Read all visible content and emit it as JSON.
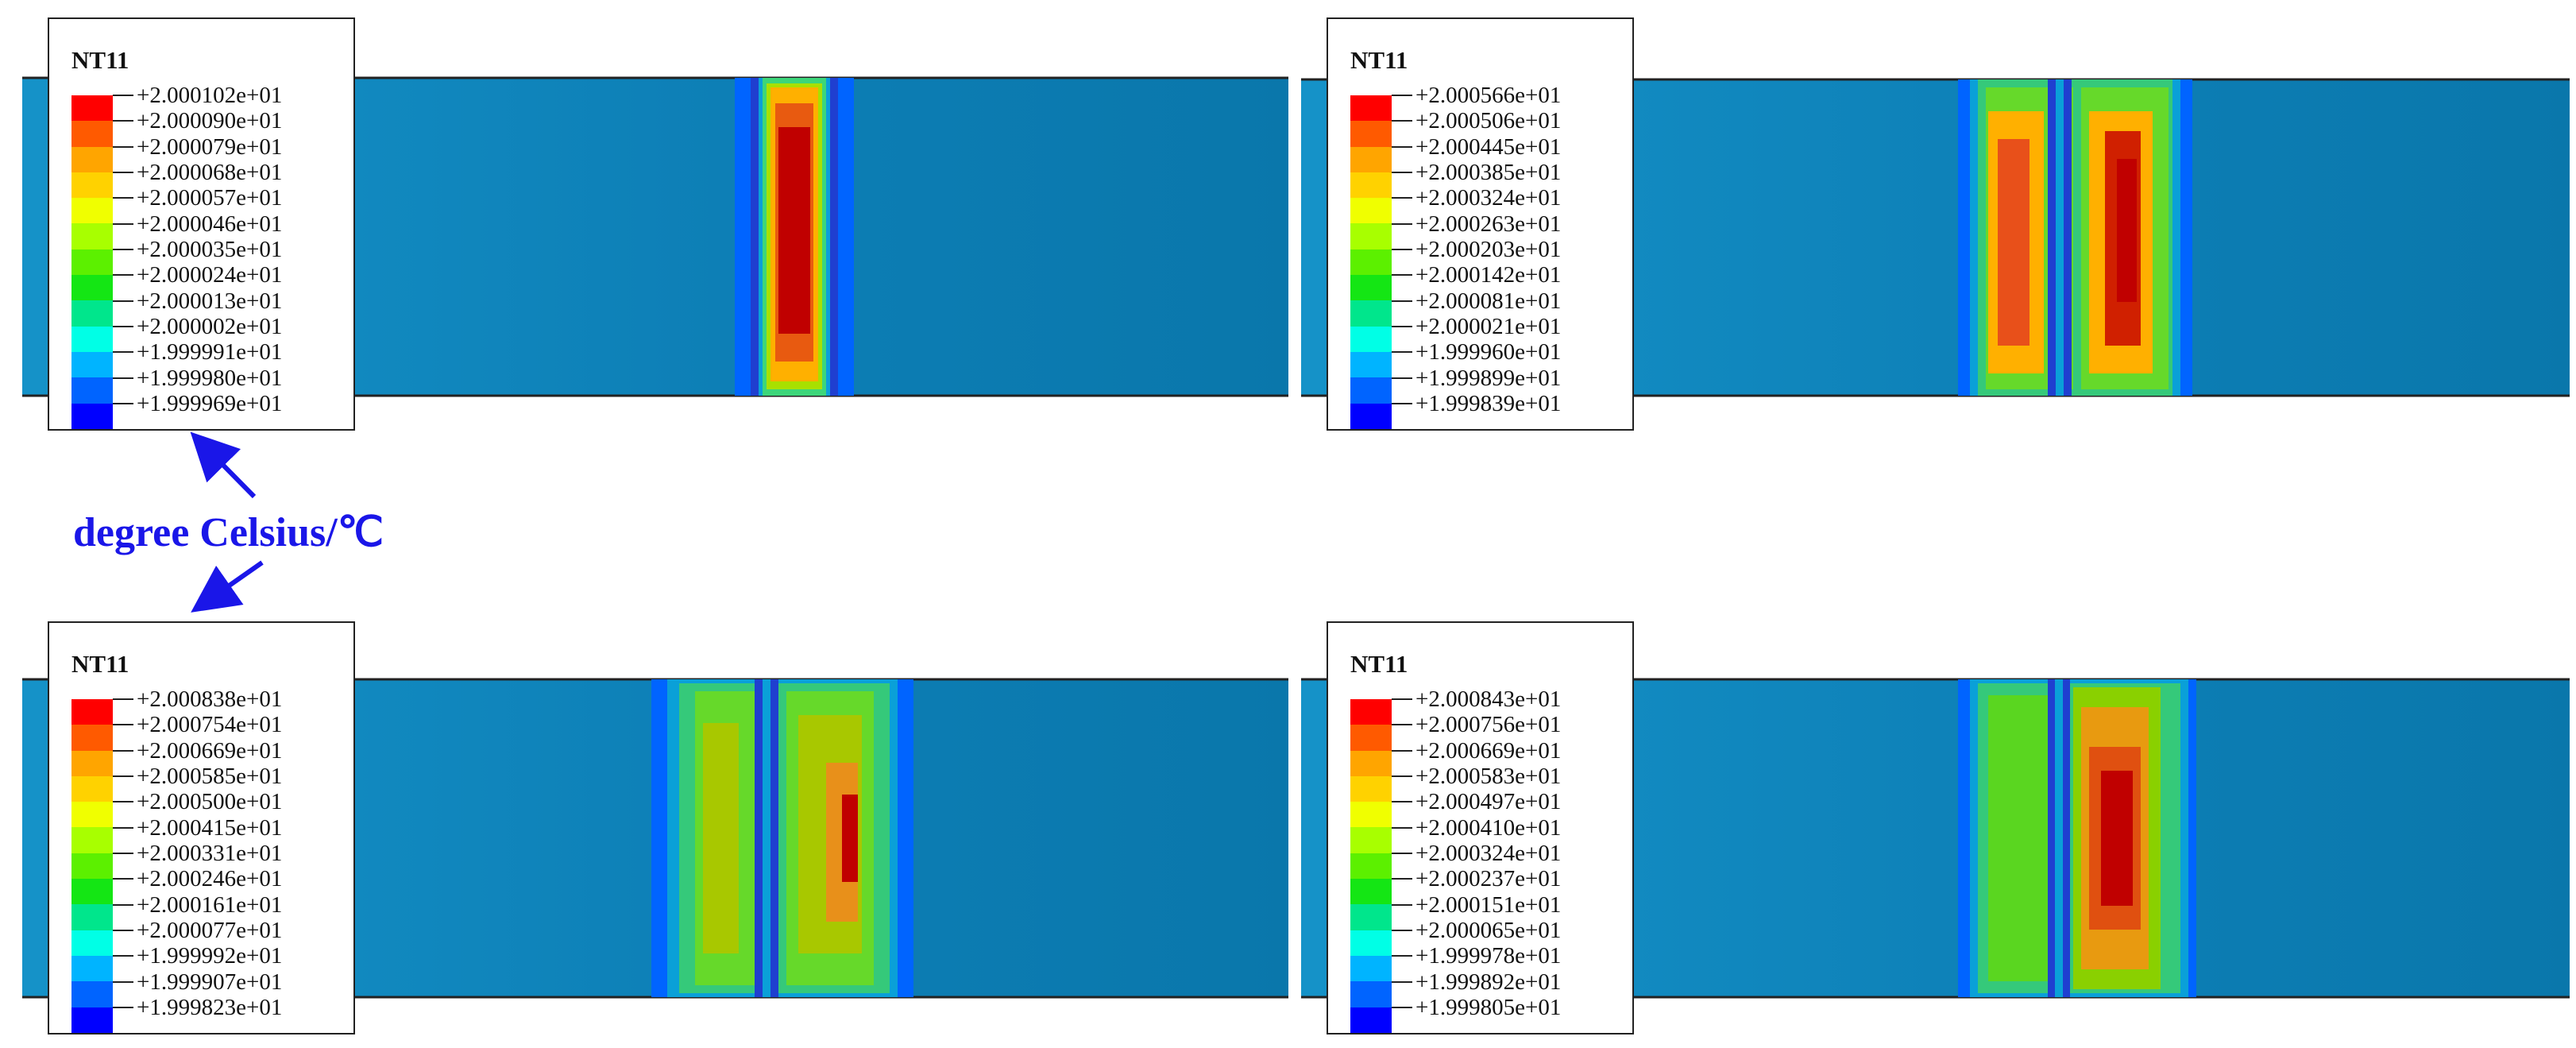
{
  "unit_label": "degree Celsius/℃",
  "colormap": [
    "#ff0000",
    "#ff5a00",
    "#ffa500",
    "#ffd200",
    "#f0ff00",
    "#a8ff00",
    "#5cf000",
    "#14e614",
    "#00e68c",
    "#00ffe6",
    "#00b4ff",
    "#0064ff",
    "#0000ff"
  ],
  "panels": [
    {
      "id": "top-left",
      "legend_title": "NT11",
      "legend_values": [
        "+2.000102e+01",
        "+2.000090e+01",
        "+2.000079e+01",
        "+2.000068e+01",
        "+2.000057e+01",
        "+2.000046e+01",
        "+2.000035e+01",
        "+2.000024e+01",
        "+2.000013e+01",
        "+2.000002e+01",
        "+1.999991e+01",
        "+1.999980e+01",
        "+1.999969e+01"
      ]
    },
    {
      "id": "top-right",
      "legend_title": "NT11",
      "legend_values": [
        "+2.000566e+01",
        "+2.000506e+01",
        "+2.000445e+01",
        "+2.000385e+01",
        "+2.000324e+01",
        "+2.000263e+01",
        "+2.000203e+01",
        "+2.000142e+01",
        "+2.000081e+01",
        "+2.000021e+01",
        "+1.999960e+01",
        "+1.999899e+01",
        "+1.999839e+01"
      ]
    },
    {
      "id": "bottom-left",
      "legend_title": "NT11",
      "legend_values": [
        "+2.000838e+01",
        "+2.000754e+01",
        "+2.000669e+01",
        "+2.000585e+01",
        "+2.000500e+01",
        "+2.000415e+01",
        "+2.000331e+01",
        "+2.000246e+01",
        "+2.000161e+01",
        "+2.000077e+01",
        "+1.999992e+01",
        "+1.999907e+01",
        "+1.999823e+01"
      ]
    },
    {
      "id": "bottom-right",
      "legend_title": "NT11",
      "legend_values": [
        "+2.000843e+01",
        "+2.000756e+01",
        "+2.000669e+01",
        "+2.000583e+01",
        "+2.000497e+01",
        "+2.000410e+01",
        "+2.000324e+01",
        "+2.000237e+01",
        "+2.000151e+01",
        "+2.000065e+01",
        "+1.999978e+01",
        "+1.999892e+01",
        "+1.999805e+01"
      ]
    }
  ]
}
